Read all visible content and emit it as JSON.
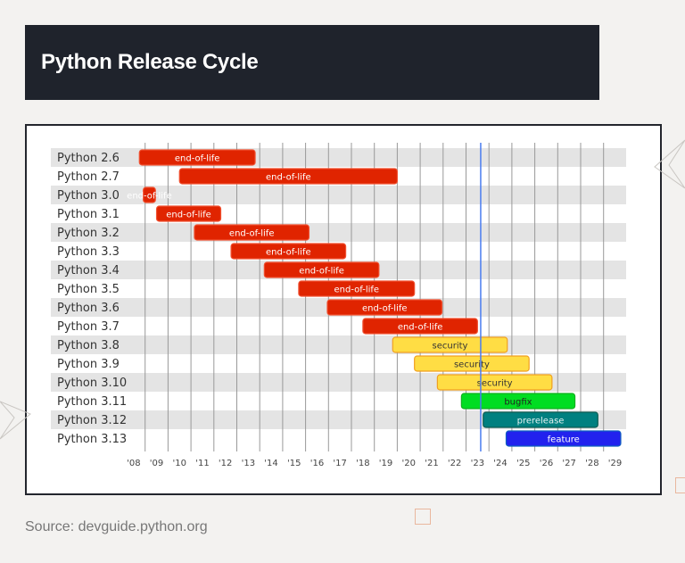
{
  "header": {
    "title": "Python Release Cycle"
  },
  "source": "Source: devguide.python.org",
  "chart_data": {
    "type": "gantt",
    "xlim": [
      2008,
      2030
    ],
    "x_tick_labels": [
      "'08",
      "'09",
      "'10",
      "'11",
      "'12",
      "'13",
      "'14",
      "'15",
      "'16",
      "'17",
      "'18",
      "'19",
      "'20",
      "'21",
      "'22",
      "'23",
      "'24",
      "'25",
      "'26",
      "'27",
      "'28",
      "'29"
    ],
    "today": 2023.64,
    "grid": true,
    "status_colors": {
      "end-of-life": "#e02400",
      "security": "#ffdd44",
      "bugfix": "#00dd22",
      "prerelease": "#008080",
      "feature": "#2222ee"
    },
    "bars": [
      {
        "version": "Python 2.6",
        "start": 2008.75,
        "end": 2013.8,
        "status": "end-of-life"
      },
      {
        "version": "Python 2.7",
        "start": 2010.5,
        "end": 2020.0,
        "status": "end-of-life"
      },
      {
        "version": "Python 3.0",
        "start": 2008.92,
        "end": 2009.45,
        "status": "end-of-life"
      },
      {
        "version": "Python 3.1",
        "start": 2009.5,
        "end": 2012.3,
        "status": "end-of-life"
      },
      {
        "version": "Python 3.2",
        "start": 2011.15,
        "end": 2016.15,
        "status": "end-of-life"
      },
      {
        "version": "Python 3.3",
        "start": 2012.75,
        "end": 2017.75,
        "status": "end-of-life"
      },
      {
        "version": "Python 3.4",
        "start": 2014.2,
        "end": 2019.2,
        "status": "end-of-life"
      },
      {
        "version": "Python 3.5",
        "start": 2015.7,
        "end": 2020.75,
        "status": "end-of-life"
      },
      {
        "version": "Python 3.6",
        "start": 2016.95,
        "end": 2021.95,
        "status": "end-of-life"
      },
      {
        "version": "Python 3.7",
        "start": 2018.5,
        "end": 2023.5,
        "status": "end-of-life"
      },
      {
        "version": "Python 3.8",
        "start": 2019.8,
        "end": 2024.8,
        "status": "security"
      },
      {
        "version": "Python 3.9",
        "start": 2020.75,
        "end": 2025.75,
        "status": "security"
      },
      {
        "version": "Python 3.10",
        "start": 2021.75,
        "end": 2026.75,
        "status": "security"
      },
      {
        "version": "Python 3.11",
        "start": 2022.8,
        "end": 2027.75,
        "status": "bugfix"
      },
      {
        "version": "Python 3.12",
        "start": 2023.75,
        "end": 2028.75,
        "status": "prerelease"
      },
      {
        "version": "Python 3.13",
        "start": 2024.75,
        "end": 2029.75,
        "status": "feature"
      }
    ]
  }
}
